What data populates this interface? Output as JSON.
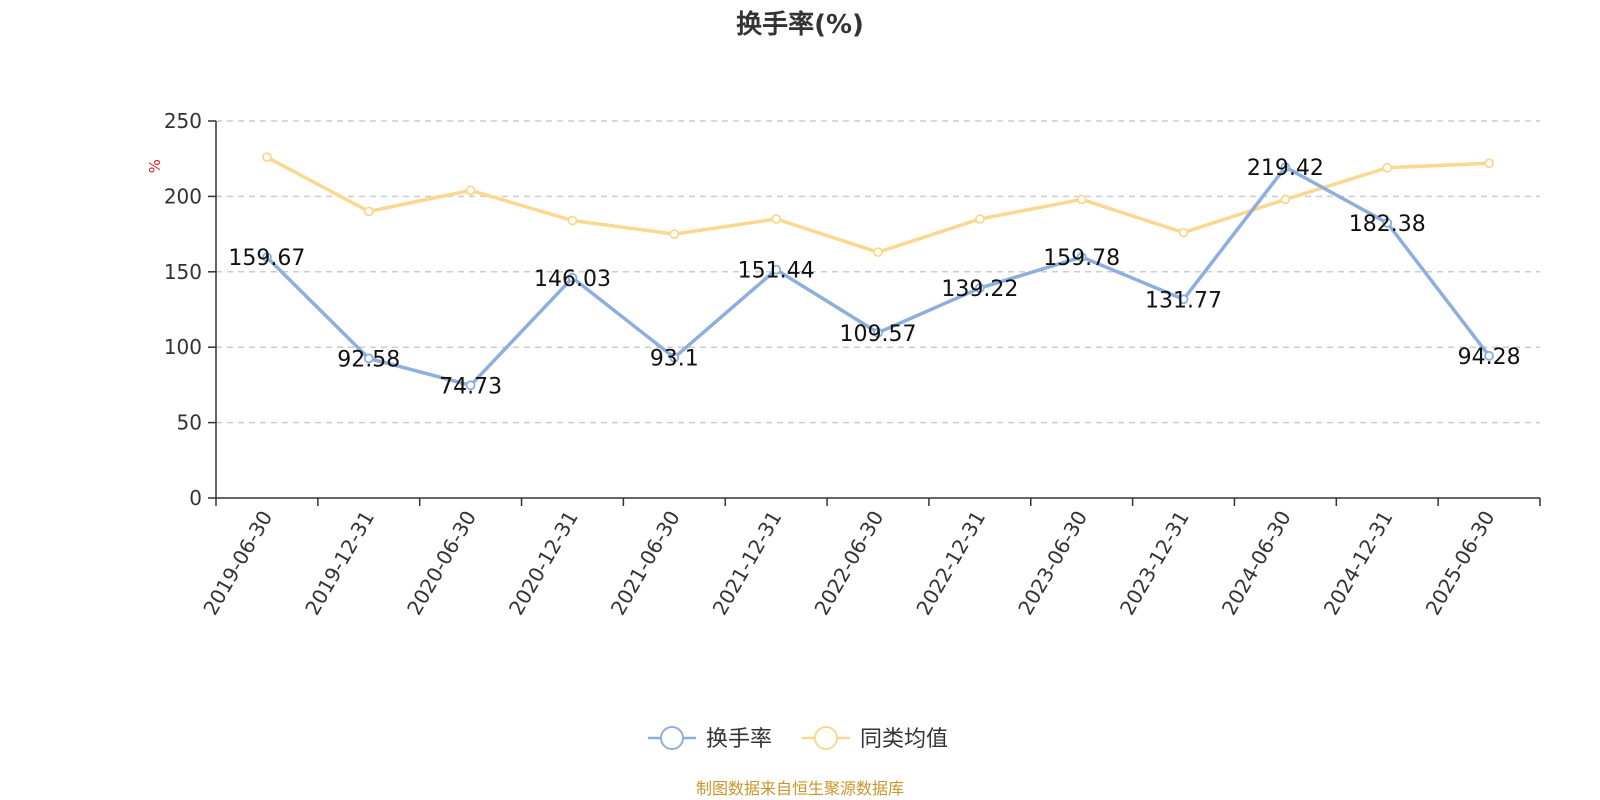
{
  "chart_data": {
    "type": "line",
    "title": "换手率(%)",
    "ylabel": "%",
    "ylim": [
      0,
      250
    ],
    "yticks": [
      0,
      50,
      100,
      150,
      200,
      250
    ],
    "grid": true,
    "legend_position": "bottom",
    "categories": [
      "2019-06-30",
      "2019-12-31",
      "2020-06-30",
      "2020-12-31",
      "2021-06-30",
      "2021-12-31",
      "2022-06-30",
      "2022-12-31",
      "2023-06-30",
      "2023-12-31",
      "2024-06-30",
      "2024-12-31",
      "2025-06-30"
    ],
    "series": [
      {
        "name": "换手率",
        "color": "#8eaede",
        "values": [
          159.67,
          92.58,
          74.73,
          146.03,
          93.1,
          151.44,
          109.57,
          139.22,
          159.78,
          131.77,
          219.42,
          182.38,
          94.28
        ],
        "value_labels": [
          "159.67",
          "92.58",
          "74.73",
          "146.03",
          "93.1",
          "151.44",
          "109.57",
          "139.22",
          "159.78",
          "131.77",
          "219.42",
          "182.38",
          "94.28"
        ]
      },
      {
        "name": "同类均值",
        "color": "#fbd88f",
        "values": [
          226,
          190,
          204,
          184,
          175,
          185,
          163,
          185,
          198,
          176,
          198,
          219,
          222
        ]
      }
    ],
    "source": "制图数据来自恒生聚源数据库"
  }
}
